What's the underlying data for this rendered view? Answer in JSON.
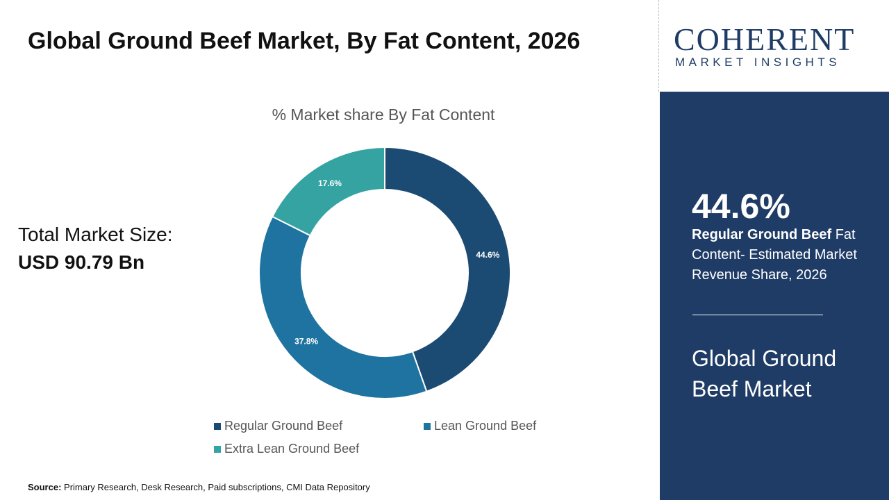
{
  "header": {
    "title": "Global Ground Beef Market, By Fat Content, 2026"
  },
  "market_size": {
    "label": "Total Market Size:",
    "value": "USD 90.79 Bn"
  },
  "chart_data": {
    "type": "pie",
    "title": "% Market share By Fat Content",
    "categories": [
      "Regular Ground Beef",
      "Lean Ground Beef",
      "Extra Lean Ground Beef"
    ],
    "values": [
      44.6,
      37.8,
      17.6
    ],
    "value_labels": [
      "44.6%",
      "37.8%",
      "17.6%"
    ],
    "colors": [
      "#1b4a72",
      "#1f73a0",
      "#36a3a3"
    ],
    "donut": true
  },
  "logo": {
    "name": "COHERENT",
    "tagline": "MARKET INSIGHTS"
  },
  "highlight": {
    "value": "44.6%",
    "segment": "Regular Ground Beef",
    "description": "Fat Content- Estimated Market Revenue Share, 2026",
    "market": "Global Ground Beef Market"
  },
  "source": {
    "label": "Source:",
    "text": "Primary Research, Desk Research, Paid subscriptions, CMI Data Repository"
  }
}
